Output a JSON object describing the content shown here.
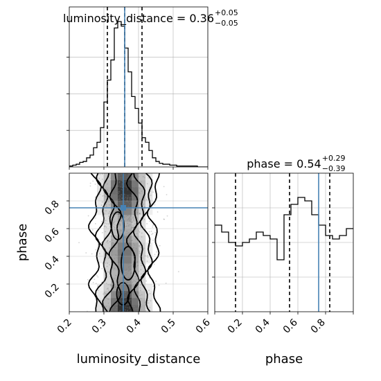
{
  "chart_data": [
    {
      "type": "histogram",
      "panel": "luminosity_distance marginal",
      "title_prefix": "luminosity_distance = 0.36",
      "title_sup": "+0.05",
      "title_sub": "−0.05",
      "x": [
        0.205,
        0.215,
        0.225,
        0.235,
        0.245,
        0.255,
        0.265,
        0.275,
        0.285,
        0.295,
        0.305,
        0.315,
        0.325,
        0.335,
        0.345,
        0.355,
        0.365,
        0.375,
        0.385,
        0.395,
        0.405,
        0.415,
        0.425,
        0.435,
        0.445,
        0.455,
        0.465,
        0.475,
        0.485,
        0.495,
        0.505,
        0.515,
        0.525,
        0.535,
        0.545,
        0.555,
        0.565,
        0.575,
        0.585,
        0.595
      ],
      "values": [
        1,
        2,
        3,
        5,
        6,
        10,
        13,
        21,
        27,
        43,
        71,
        95,
        117,
        152,
        159,
        154,
        130,
        104,
        77,
        64,
        48,
        32,
        27,
        18,
        10,
        6,
        4,
        3,
        3,
        2,
        2,
        1,
        1,
        1,
        1,
        1,
        1,
        0,
        0,
        0
      ],
      "xlim": [
        0.2,
        0.6
      ],
      "ylim": [
        0,
        175
      ],
      "quantiles": [
        0.31,
        0.36,
        0.41
      ],
      "truth": 0.36,
      "grid": true
    },
    {
      "type": "histogram",
      "panel": "phase marginal",
      "title_prefix": "phase = 0.54",
      "title_sup": "+0.29",
      "title_sub": "−0.39",
      "x": [
        0.025,
        0.075,
        0.125,
        0.175,
        0.225,
        0.275,
        0.325,
        0.375,
        0.425,
        0.475,
        0.525,
        0.575,
        0.625,
        0.675,
        0.725,
        0.775,
        0.825,
        0.875,
        0.925,
        0.975
      ],
      "values": [
        25,
        23,
        20,
        19,
        20,
        21,
        23,
        22,
        21,
        15,
        28,
        31,
        33,
        32,
        28,
        25,
        22,
        21,
        22,
        24
      ],
      "xlim": [
        0.0,
        1.0
      ],
      "ylim": [
        0,
        40
      ],
      "xticks": [
        "0.2",
        "0.4",
        "0.6",
        "0.8"
      ],
      "xlabel": "phase",
      "quantiles": [
        0.15,
        0.54,
        0.83
      ],
      "truth": 0.75,
      "grid": true
    },
    {
      "type": "scatter-contour",
      "panel": "joint",
      "xlabel": "luminosity_distance",
      "ylabel": "phase",
      "xlim": [
        0.2,
        0.6
      ],
      "ylim": [
        0.0,
        1.0
      ],
      "xticks": [
        "0.2",
        "0.3",
        "0.4",
        "0.5",
        "0.6"
      ],
      "yticks": [
        "0.2",
        "0.4",
        "0.6",
        "0.8"
      ],
      "truth": {
        "x": 0.356,
        "y": 0.75
      },
      "grid": true
    }
  ],
  "colors": {
    "truth": "#4682b4",
    "hist": "#000000",
    "grid": "#b0b0b0",
    "points": "#7f7f7f"
  }
}
